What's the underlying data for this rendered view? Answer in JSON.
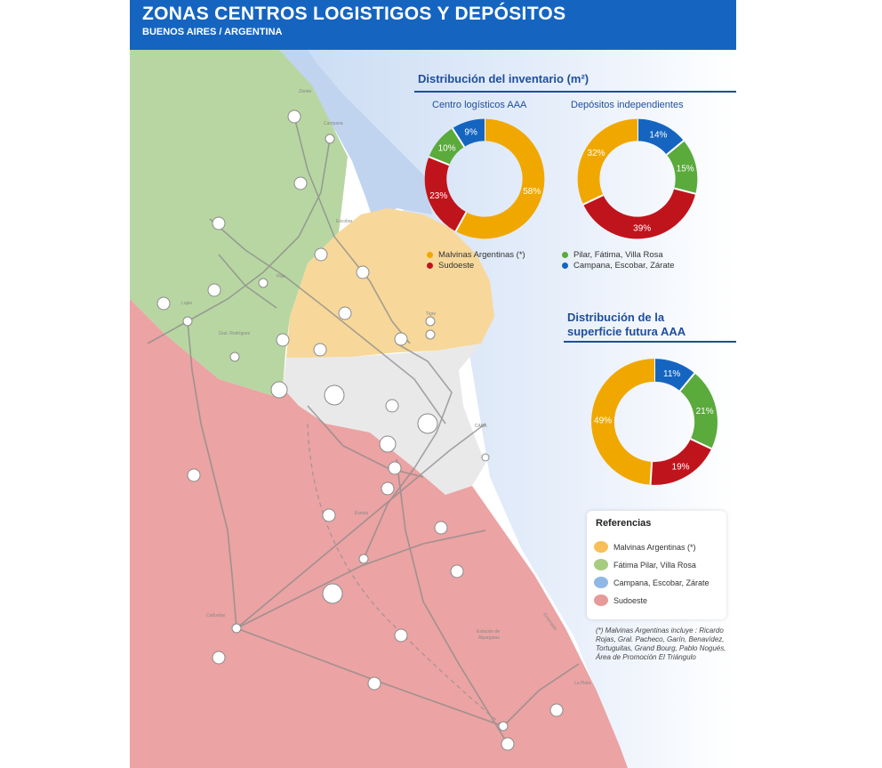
{
  "header": {
    "title": "ZONAS CENTROS LOGISTIGOS Y DEPÓSITOS",
    "subtitle": "BUENOS AIRES / ARGENTINA"
  },
  "inventory": {
    "title": "Distribución del inventario (m²)",
    "chart_centros": {
      "label": "Centro logísticos AAA"
    },
    "chart_depositos": {
      "label": "Depósitos independientes"
    }
  },
  "future": {
    "title_line1": "Distribución de la",
    "title_line2": "superficie futura AAA"
  },
  "legend": {
    "malvinas": "Malvinas Argentinas (*)",
    "sudoeste": "Sudoeste",
    "pilar": "Pilar, Fátima, Villa Rosa",
    "campana": "Campana, Escobar, Zárate"
  },
  "references": {
    "title": "Referencias",
    "items": [
      {
        "label": "Malvinas Argentinas (*)",
        "color": "#f7bf57"
      },
      {
        "label": "Fátima Pilar, Villa Rosa",
        "color": "#a5cc7f"
      },
      {
        "label": "Campana, Escobar, Zárate",
        "color": "#8fb8e6"
      },
      {
        "label": "Sudoeste",
        "color": "#e69a9a"
      }
    ]
  },
  "footnote": "(*) Malvinas Argentinas incluye : Ricardo Rojas, Gral. Pacheco, Garín, Benavídez, Tortuguitas, Grand Bourg, Pablo Nogués, Área de Promoción El Triángulo",
  "colors": {
    "header": "#1565c0",
    "malvinas": "#f0a800",
    "pilar": "#5aaa3c",
    "campana": "#1565c0",
    "sudoeste": "#c0141c"
  },
  "chart_data": [
    {
      "type": "pie",
      "title": "Centro logísticos AAA",
      "categories": [
        "Malvinas Argentinas (*)",
        "Sudoeste",
        "Pilar, Fátima, Villa Rosa",
        "Campana, Escobar, Zárate"
      ],
      "values": [
        58,
        23,
        10,
        9
      ],
      "labels": [
        "58%",
        "23%",
        "10%",
        "9%"
      ]
    },
    {
      "type": "pie",
      "title": "Depósitos independientes",
      "categories": [
        "Campana, Escobar, Zárate",
        "Pilar, Fátima, Villa Rosa",
        "Sudoeste",
        "Malvinas Argentinas (*)"
      ],
      "values": [
        14,
        15,
        39,
        32
      ],
      "labels": [
        "14%",
        "15%",
        "39%",
        "32%"
      ]
    },
    {
      "type": "pie",
      "title": "",
      "categories": [
        "Campana, Escobar, Zárate",
        "Pilar, Fátima, Villa Rosa",
        "Sudoeste",
        "Malvinas Argentinas (*)"
      ],
      "values": [
        11,
        21,
        19,
        49
      ],
      "labels": [
        "11%",
        "21%",
        "19%",
        "49%"
      ]
    }
  ]
}
